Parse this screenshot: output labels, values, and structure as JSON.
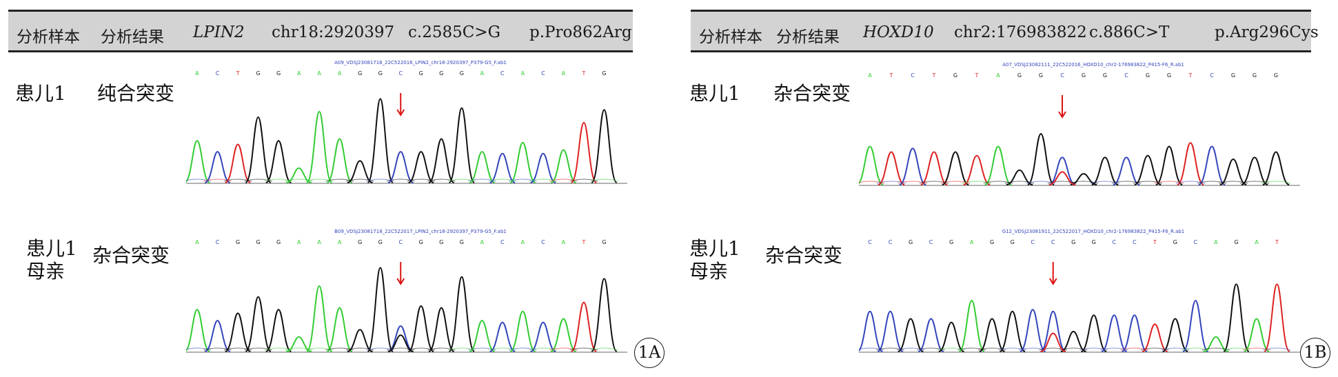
{
  "panels": [
    {
      "header": {
        "sample_col": "分析样本",
        "result_col": "分析结果",
        "gene": "LPIN2",
        "position": "chr18:2920397",
        "cdna": "c.2585C>G",
        "protein": "p.Pro862Arg"
      },
      "rows": [
        {
          "sample": "患儿1",
          "sample2": "",
          "result": "纯合突变",
          "trace_title": "A09_VDSJ23081718_22C522016_LPIN2_chr18-2920397_P379-G5_F.ab1",
          "bases": [
            "A",
            "C",
            "T",
            "G",
            "G",
            "A",
            "A",
            "A",
            "G",
            "G",
            "C",
            "G",
            "G",
            "G",
            "A",
            "C",
            "A",
            "C",
            "A",
            "T",
            "G"
          ]
        },
        {
          "sample": "患儿1",
          "sample2": "母亲",
          "result": "杂合突变",
          "trace_title": "B09_VDSJ23081718_22C522017_LPIN2_chr18-2920397_P379-G5_F.ab1",
          "bases": [
            "A",
            "C",
            "G",
            "G",
            "G",
            "A",
            "A",
            "A",
            "G",
            "G",
            "C",
            "G",
            "G",
            "G",
            "A",
            "C",
            "A",
            "C",
            "A",
            "T",
            "G"
          ]
        }
      ],
      "tag": "1A"
    },
    {
      "header": {
        "sample_col": "分析样本",
        "result_col": "分析结果",
        "gene": "HOXD10",
        "position": "chr2:176983822",
        "cdna": "c.886C>T",
        "protein": "p.Arg296Cys"
      },
      "rows": [
        {
          "sample": "患儿1",
          "sample2": "",
          "result": "杂合突变",
          "trace_title": "A07_VDSJ23082111_22C522016_HOXD10_chr2-176983822_P415-F6_R.ab1",
          "bases": [
            "A",
            "T",
            "C",
            "T",
            "G",
            "T",
            "A",
            "G",
            "G",
            "C",
            "G",
            "G",
            "C",
            "G",
            "G",
            "T",
            "C",
            "G",
            "G",
            "G"
          ]
        },
        {
          "sample": "患儿1",
          "sample2": "母亲",
          "result": "杂合突变",
          "trace_title": "G12_VDSJ23081911_22C522017_HOXD10_chr2-176983822_P415-F6_R.ab1",
          "bases": [
            "C",
            "C",
            "G",
            "C",
            "G",
            "A",
            "G",
            "G",
            "C",
            "C",
            "G",
            "G",
            "C",
            "C",
            "T",
            "G",
            "C",
            "A",
            "G",
            "A",
            "T"
          ]
        }
      ],
      "tag": "1B"
    }
  ],
  "colors": {
    "A": "#33cc33",
    "C": "#3344bb",
    "G": "#111111",
    "T": "#dd2222",
    "arrow": "#dd1111",
    "header_bg": "#d3d3d3"
  }
}
